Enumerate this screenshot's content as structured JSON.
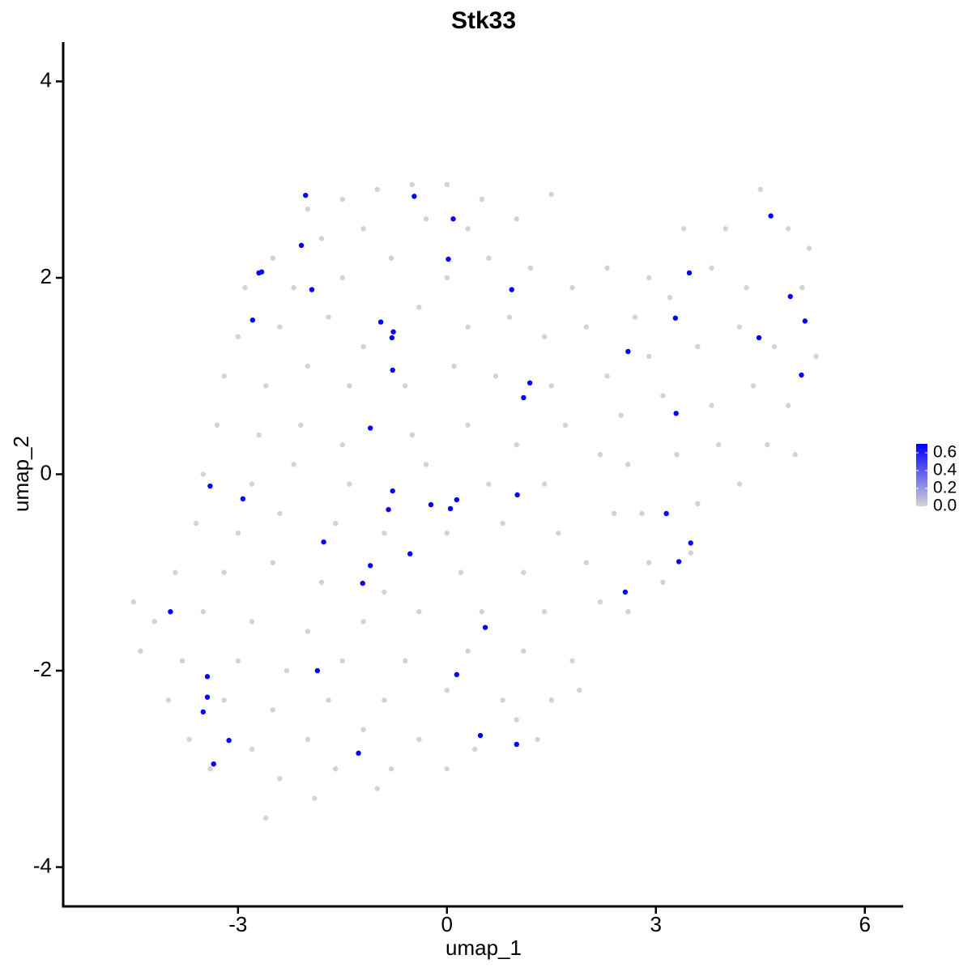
{
  "chart_data": {
    "type": "scatter",
    "title": "Stk33",
    "x_label": "umap_1",
    "y_label": "umap_2",
    "xlim": [
      -5.51,
      6.55
    ],
    "ylim": [
      -4.4,
      4.4
    ],
    "xticks": [
      -3,
      0,
      3,
      6
    ],
    "yticks": [
      -4,
      -2,
      0,
      2,
      4
    ],
    "color_scale": {
      "low": "#d3d3d3",
      "high": "#0000ff",
      "lim": [
        0,
        0.7
      ],
      "ticks": [
        {
          "value": 0,
          "label": "0.0"
        },
        0.2,
        0.4,
        0.6
      ]
    },
    "x": [
      -2.0,
      -1.5,
      -1.0,
      -0.5,
      0,
      0.5,
      1.0,
      1.5,
      -2.5,
      -1.8,
      -1.2,
      -0.3,
      0.3,
      -2.9,
      -2.2,
      -1.5,
      -0.8,
      0,
      0.6,
      1.2,
      -3.0,
      -2.4,
      -1.7,
      -1.2,
      -0.4,
      0.3,
      0.9,
      1.4,
      -3.2,
      -2.6,
      -2.0,
      -1.4,
      -0.6,
      0.1,
      0.7,
      1.5,
      -3.3,
      -2.7,
      -2.1,
      -1.5,
      -0.5,
      0.3,
      1.0,
      1.7,
      -3.5,
      -2.8,
      -2.2,
      -1.4,
      -0.3,
      0.6,
      1.4,
      2.2,
      -3.6,
      -3.0,
      -2.4,
      -1.6,
      -0.9,
      0.0,
      0.8,
      1.6,
      2.4,
      -3.9,
      -3.2,
      -2.5,
      -1.8,
      -0.9,
      0.2,
      1.1,
      2.0,
      -4.5,
      -4.2,
      -3.5,
      -2.8,
      -2.0,
      -1.2,
      -0.4,
      0.5,
      1.4,
      2.2,
      -4.4,
      -3.8,
      -3.0,
      -2.3,
      -1.5,
      -0.6,
      0.3,
      1.1,
      1.8,
      -4.0,
      -3.2,
      -2.5,
      -1.7,
      -0.9,
      0.0,
      0.8,
      1.5,
      -3.7,
      -2.8,
      -2.0,
      -1.2,
      -0.4,
      0.4,
      1.0,
      -3.4,
      -2.4,
      -1.6,
      -0.8,
      0.0,
      -2.6,
      -1.9,
      -1.0,
      1.8,
      2.3,
      2.9,
      3.4,
      4.0,
      4.5,
      4.9,
      5.2,
      2.0,
      2.7,
      3.2,
      3.8,
      4.3,
      5.1,
      2.3,
      2.9,
      3.6,
      4.2,
      4.7,
      5.3,
      2.5,
      3.1,
      3.8,
      4.4,
      4.9,
      2.6,
      3.3,
      3.9,
      4.6,
      5.0,
      2.8,
      3.6,
      4.2,
      2.9,
      3.5,
      3.1,
      2.6,
      1.9,
      1.3,
      -2.03,
      -0.47,
      0.09,
      -2.09,
      0.02,
      -2.66,
      -2.7,
      -1.94,
      0.93,
      -2.79,
      -0.95,
      -0.77,
      -0.79,
      -0.78,
      1.19,
      1.1,
      -1.1,
      -3.4,
      -2.93,
      -0.78,
      -0.23,
      0.14,
      0.05,
      -0.84,
      1.01,
      -1.77,
      -0.53,
      -1.1,
      -1.21,
      -3.97,
      0.55,
      -1.86,
      0.14,
      -3.44,
      -3.44,
      -3.5,
      -3.13,
      -3.35,
      -1.27,
      0.48,
      1.0,
      4.65,
      3.48,
      4.93,
      5.14,
      3.28,
      4.48,
      2.6,
      5.09,
      3.29,
      3.15,
      3.5,
      3.33,
      2.56
    ],
    "y": [
      2.7,
      2.8,
      2.9,
      2.95,
      2.95,
      2.8,
      2.6,
      2.85,
      2.2,
      2.4,
      2.5,
      2.6,
      2.5,
      1.9,
      1.9,
      2.0,
      2.2,
      2.0,
      2.2,
      2.1,
      1.4,
      1.5,
      1.6,
      1.3,
      1.7,
      1.5,
      1.6,
      1.4,
      1.0,
      0.9,
      1.1,
      0.9,
      0.9,
      1.1,
      1.0,
      0.9,
      0.5,
      0.4,
      0.5,
      0.3,
      0.4,
      0.5,
      0.3,
      0.5,
      0.0,
      -0.1,
      0.1,
      -0.1,
      0.1,
      -0.1,
      -0.1,
      0.2,
      -0.5,
      -0.6,
      -0.4,
      -0.5,
      -0.6,
      -0.6,
      -0.5,
      -0.6,
      -0.4,
      -1.0,
      -1.0,
      -0.9,
      -1.1,
      -1.2,
      -1.0,
      -1.0,
      -0.9,
      -1.3,
      -1.5,
      -1.4,
      -1.5,
      -1.6,
      -1.5,
      -1.4,
      -1.4,
      -1.4,
      -1.3,
      -1.8,
      -1.9,
      -1.9,
      -2.0,
      -1.9,
      -1.9,
      -1.8,
      -1.8,
      -1.9,
      -2.3,
      -2.3,
      -2.4,
      -2.3,
      -2.3,
      -2.2,
      -2.3,
      -2.3,
      -2.7,
      -2.8,
      -2.7,
      -2.6,
      -2.7,
      -2.8,
      -2.5,
      -3.0,
      -3.1,
      -3.0,
      -3.0,
      -3.0,
      -3.5,
      -3.3,
      -3.2,
      1.9,
      2.1,
      2.0,
      2.5,
      2.5,
      2.9,
      2.5,
      2.3,
      1.5,
      1.6,
      1.8,
      2.1,
      1.9,
      1.9,
      1.0,
      1.2,
      1.3,
      1.5,
      1.3,
      1.2,
      0.6,
      0.8,
      0.7,
      0.9,
      0.7,
      0.1,
      0.2,
      0.3,
      0.3,
      0.2,
      -0.4,
      -0.3,
      -0.1,
      -0.9,
      -0.8,
      -1.1,
      -1.4,
      -2.2,
      -2.7,
      2.84,
      2.83,
      2.6,
      2.33,
      2.19,
      2.06,
      2.05,
      1.88,
      1.88,
      1.57,
      1.55,
      1.45,
      1.39,
      1.06,
      0.93,
      0.78,
      0.47,
      -0.12,
      -0.25,
      -0.17,
      -0.31,
      -0.26,
      -0.35,
      -0.36,
      -0.21,
      -0.69,
      -0.81,
      -0.93,
      -1.11,
      -1.4,
      -1.56,
      -2.0,
      -2.04,
      -2.06,
      -2.27,
      -2.42,
      -2.71,
      -2.95,
      -2.84,
      -2.66,
      -2.75,
      2.63,
      2.05,
      1.81,
      1.56,
      1.59,
      1.39,
      1.25,
      1.01,
      0.62,
      -0.4,
      -0.7,
      -0.89,
      -1.2
    ],
    "values": [
      0,
      0,
      0,
      0,
      0,
      0,
      0,
      0,
      0,
      0,
      0,
      0,
      0,
      0,
      0,
      0,
      0,
      0,
      0,
      0,
      0,
      0,
      0,
      0,
      0,
      0,
      0,
      0,
      0,
      0,
      0,
      0,
      0,
      0,
      0,
      0,
      0,
      0,
      0,
      0,
      0,
      0,
      0,
      0,
      0,
      0,
      0,
      0,
      0,
      0,
      0,
      0,
      0,
      0,
      0,
      0,
      0,
      0,
      0,
      0,
      0,
      0,
      0,
      0,
      0,
      0,
      0,
      0,
      0,
      0,
      0,
      0,
      0,
      0,
      0,
      0,
      0,
      0,
      0,
      0,
      0,
      0,
      0,
      0,
      0,
      0,
      0,
      0,
      0,
      0,
      0,
      0,
      0,
      0,
      0,
      0,
      0,
      0,
      0,
      0,
      0,
      0,
      0,
      0,
      0,
      0,
      0,
      0,
      0,
      0,
      0,
      0,
      0,
      0,
      0,
      0,
      0,
      0,
      0,
      0,
      0,
      0,
      0,
      0,
      0,
      0,
      0,
      0,
      0,
      0,
      0,
      0,
      0,
      0,
      0,
      0,
      0,
      0,
      0,
      0,
      0,
      0,
      0,
      0,
      0,
      0,
      0,
      0,
      0,
      0,
      0.69,
      0.69,
      0.69,
      0.69,
      0.69,
      0.69,
      0.69,
      0.69,
      0.69,
      0.69,
      0.69,
      0.69,
      0.69,
      0.69,
      0.69,
      0.69,
      0.69,
      0.69,
      0.69,
      0.69,
      0.69,
      0.69,
      0.69,
      0.69,
      0.69,
      0.69,
      0.69,
      0.69,
      0.69,
      0.69,
      0.69,
      0.69,
      0.69,
      0.69,
      0.69,
      0.69,
      0.69,
      0.69,
      0.69,
      0.69,
      0.69,
      0.69,
      0.69,
      0.69,
      0.69,
      0.69,
      0.69,
      0.69,
      0.69,
      0.69,
      0.69,
      0.69,
      0.69,
      0.69
    ]
  }
}
